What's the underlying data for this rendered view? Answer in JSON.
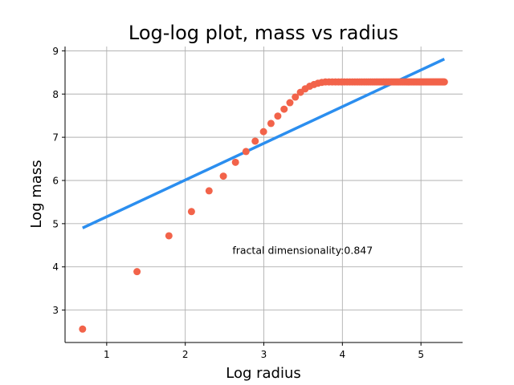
{
  "chart_data": {
    "type": "scatter",
    "title": "Log-log plot, mass vs radius",
    "xlabel": "Log radius",
    "ylabel": "Log mass",
    "xlim": [
      0.47,
      5.53
    ],
    "ylim": [
      2.25,
      9.1
    ],
    "xticks": [
      1,
      2,
      3,
      4,
      5
    ],
    "yticks": [
      3,
      4,
      5,
      6,
      7,
      8,
      9
    ],
    "grid": true,
    "annotation": {
      "text": "fractal dimensionality:0.847",
      "x": 2.6,
      "y": 4.3
    },
    "colors": {
      "scatter": "#f2634a",
      "fit_line": "#2b8eef"
    },
    "series": [
      {
        "type": "scatter",
        "x": [
          0.693,
          1.386,
          1.792,
          2.079,
          2.303,
          2.485,
          2.639,
          2.773,
          2.89,
          2.996,
          3.091,
          3.178,
          3.258,
          3.332,
          3.401,
          3.466,
          3.526,
          3.584,
          3.638,
          3.689,
          3.738,
          3.784,
          3.829,
          3.871,
          3.912,
          3.951,
          3.989,
          4.025,
          4.06,
          4.094,
          4.127,
          4.159,
          4.19,
          4.22,
          4.248,
          4.277,
          4.304,
          4.331,
          4.357,
          4.382,
          4.407,
          4.431,
          4.454,
          4.477,
          4.5,
          4.522,
          4.543,
          4.564,
          4.585,
          4.605,
          4.625,
          4.644,
          4.663,
          4.682,
          4.7,
          4.718,
          4.736,
          4.754,
          4.771,
          4.787,
          4.804,
          4.82,
          4.836,
          4.852,
          4.868,
          4.883,
          4.898,
          4.913,
          4.927,
          4.942,
          4.956,
          4.97,
          4.984,
          4.997,
          5.011,
          5.024,
          5.037,
          5.05,
          5.063,
          5.075,
          5.088,
          5.1,
          5.112,
          5.124,
          5.136,
          5.148,
          5.159,
          5.17,
          5.182,
          5.193,
          5.204,
          5.215,
          5.226,
          5.236,
          5.247,
          5.257,
          5.268,
          5.278,
          5.288,
          5.298
        ],
        "y": [
          2.56,
          3.89,
          4.72,
          5.28,
          5.76,
          6.1,
          6.42,
          6.67,
          6.91,
          7.13,
          7.32,
          7.49,
          7.65,
          7.8,
          7.93,
          8.04,
          8.12,
          8.18,
          8.22,
          8.25,
          8.27,
          8.28,
          8.28,
          8.28,
          8.28,
          8.28,
          8.28,
          8.28,
          8.28,
          8.28,
          8.28,
          8.28,
          8.28,
          8.28,
          8.28,
          8.28,
          8.28,
          8.28,
          8.28,
          8.28,
          8.28,
          8.28,
          8.28,
          8.28,
          8.28,
          8.28,
          8.28,
          8.28,
          8.28,
          8.28,
          8.28,
          8.28,
          8.28,
          8.28,
          8.28,
          8.28,
          8.28,
          8.28,
          8.28,
          8.28,
          8.28,
          8.28,
          8.28,
          8.28,
          8.28,
          8.28,
          8.28,
          8.28,
          8.28,
          8.28,
          8.28,
          8.28,
          8.28,
          8.28,
          8.28,
          8.28,
          8.28,
          8.28,
          8.28,
          8.28,
          8.28,
          8.28,
          8.28,
          8.28,
          8.28,
          8.28,
          8.28,
          8.28,
          8.28,
          8.28,
          8.28,
          8.28,
          8.28,
          8.28,
          8.28,
          8.28,
          8.28,
          8.28,
          8.28,
          8.28
        ]
      },
      {
        "type": "line",
        "x": [
          0.693,
          5.298
        ],
        "y": [
          4.9,
          8.81
        ]
      }
    ]
  }
}
